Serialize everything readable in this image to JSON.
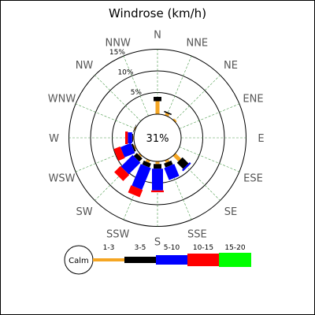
{
  "chart_data": {
    "type": "windrose",
    "title": "Windrose (km/h)",
    "calm_label": "31%",
    "ring_labels": [
      "5%",
      "10%",
      "15%"
    ],
    "rings": [
      5,
      10,
      15
    ],
    "directions": [
      "N",
      "NNE",
      "NE",
      "ENE",
      "E",
      "ESE",
      "SE",
      "SSE",
      "S",
      "SSW",
      "SW",
      "WSW",
      "W",
      "WNW",
      "NW",
      "NNW"
    ],
    "legend": {
      "calm": "Calm",
      "bins": [
        "1-3",
        "3-5",
        "5-10",
        "10-15",
        "15-20"
      ],
      "colors": [
        "#f5a623",
        "#000000",
        "#0000ff",
        "#ff0000",
        "#00ff00"
      ]
    },
    "series": [
      {
        "direction": "N",
        "values": [
          3.0,
          1.0,
          0,
          0,
          0
        ]
      },
      {
        "direction": "NNE",
        "values": [
          0.6,
          0.3,
          0,
          0,
          0
        ]
      },
      {
        "direction": "NE",
        "values": [
          0.4,
          0,
          0,
          0,
          0
        ]
      },
      {
        "direction": "ENE",
        "values": [
          0,
          0,
          0,
          0,
          0
        ]
      },
      {
        "direction": "E",
        "values": [
          0,
          0,
          0,
          0,
          0
        ]
      },
      {
        "direction": "ESE",
        "values": [
          0,
          0,
          0,
          0,
          0
        ]
      },
      {
        "direction": "SE",
        "values": [
          1.8,
          2.0,
          0.4,
          0,
          0
        ]
      },
      {
        "direction": "SSE",
        "values": [
          0.6,
          1.0,
          3.0,
          0,
          0
        ]
      },
      {
        "direction": "S",
        "values": [
          0.6,
          1.1,
          5.0,
          0.4,
          0
        ]
      },
      {
        "direction": "SSW",
        "values": [
          0.6,
          1.0,
          5.4,
          1.8,
          0
        ]
      },
      {
        "direction": "SW",
        "values": [
          0.4,
          1.0,
          3.8,
          2.0,
          0
        ]
      },
      {
        "direction": "WSW",
        "values": [
          0.3,
          0.4,
          2.6,
          1.6,
          0
        ]
      },
      {
        "direction": "W",
        "values": [
          0.2,
          0.2,
          1.0,
          0.6,
          0
        ]
      },
      {
        "direction": "WNW",
        "values": [
          0.2,
          0.1,
          0,
          0,
          0
        ]
      },
      {
        "direction": "NW",
        "values": [
          0,
          0,
          0,
          0,
          0
        ]
      },
      {
        "direction": "NNW",
        "values": [
          0,
          0,
          0,
          0,
          0
        ]
      }
    ]
  }
}
